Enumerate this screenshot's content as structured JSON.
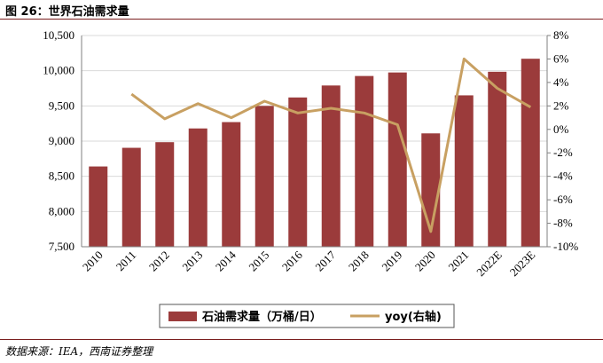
{
  "title": "图 26：世界石油需求量",
  "source": "数据来源：IEA，西南证券整理",
  "chart_data": {
    "type": "bar",
    "categories": [
      "2010",
      "2011",
      "2012",
      "2013",
      "2014",
      "2015",
      "2016",
      "2017",
      "2018",
      "2019",
      "2020",
      "2021",
      "2022E",
      "2023E"
    ],
    "series": [
      {
        "name": "石油需求量（万桶/日）",
        "type": "bar",
        "axis": "left",
        "color": "#9b3b3b",
        "values": [
          8640,
          8905,
          8985,
          9180,
          9270,
          9500,
          9620,
          9790,
          9925,
          9975,
          9110,
          9650,
          9985,
          10170
        ]
      },
      {
        "name": "yoy(右轴)",
        "type": "line",
        "axis": "right",
        "color": "#c8a062",
        "values": [
          null,
          3.0,
          0.9,
          2.2,
          1.0,
          2.4,
          1.4,
          1.8,
          1.4,
          0.4,
          -8.7,
          6.0,
          3.5,
          1.9
        ]
      }
    ],
    "y_left": {
      "min": 7500,
      "max": 10500,
      "step": 500,
      "tick_labels": [
        "7,500",
        "8,000",
        "8,500",
        "9,000",
        "9,500",
        "10,000",
        "10,500"
      ]
    },
    "y_right": {
      "min": -10,
      "max": 8,
      "step": 2,
      "tick_labels": [
        "-10%",
        "-8%",
        "-6%",
        "-4%",
        "-2%",
        "0%",
        "2%",
        "4%",
        "6%",
        "8%"
      ]
    },
    "grid": true,
    "legend": "bottom"
  }
}
